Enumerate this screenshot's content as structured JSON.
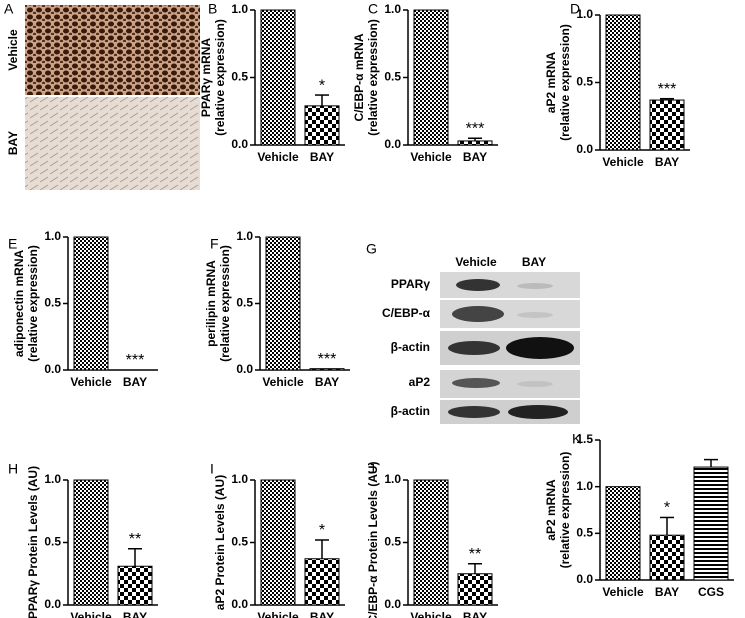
{
  "chart_data": [
    {
      "type": "bar",
      "panel": "B",
      "ylabel": [
        "PPARγ mRNA",
        "(relative expression)"
      ],
      "categories": [
        "Vehicle",
        "BAY"
      ],
      "values": [
        1.0,
        0.29
      ],
      "errors": [
        null,
        0.08
      ],
      "annotations": [
        {
          "index": 1,
          "text": "*"
        }
      ],
      "ylim": [
        0,
        1
      ],
      "yticks": [
        {
          "value": 0,
          "label": "0.0"
        },
        {
          "value": 0.5,
          "label": "0.5"
        },
        {
          "value": 1,
          "label": "1.0"
        }
      ]
    },
    {
      "type": "bar",
      "panel": "C",
      "ylabel": [
        "C/EBP-α mRNA",
        "(relative expression)"
      ],
      "categories": [
        "Vehicle",
        "BAY"
      ],
      "values": [
        1.0,
        0.03
      ],
      "errors": [
        null,
        0.02
      ],
      "annotations": [
        {
          "index": 1,
          "text": "***"
        }
      ],
      "ylim": [
        0,
        1
      ],
      "yticks": [
        {
          "value": 0,
          "label": "0.0"
        },
        {
          "value": 0.5,
          "label": "0.5"
        },
        {
          "value": 1,
          "label": "1.0"
        }
      ]
    },
    {
      "type": "bar",
      "panel": "D",
      "ylabel": [
        "aP2 mRNA",
        "(relative expression)"
      ],
      "categories": [
        "Vehicle",
        "BAY"
      ],
      "values": [
        1.0,
        0.37
      ],
      "errors": [
        null,
        0.01
      ],
      "annotations": [
        {
          "index": 1,
          "text": "***"
        }
      ],
      "ylim": [
        0,
        1
      ],
      "yticks": [
        {
          "value": 0,
          "label": "0.0"
        },
        {
          "value": 0.5,
          "label": "0.5"
        },
        {
          "value": 1,
          "label": "1.0"
        }
      ]
    },
    {
      "type": "bar",
      "panel": "E",
      "ylabel": [
        "adiponectin mRNA",
        "(relative expression)"
      ],
      "categories": [
        "Vehicle",
        "BAY"
      ],
      "values": [
        1.0,
        0.0
      ],
      "errors": [
        null,
        null
      ],
      "annotations": [
        {
          "index": 1,
          "text": "***"
        }
      ],
      "ylim": [
        0,
        1
      ],
      "yticks": [
        {
          "value": 0,
          "label": "0.0"
        },
        {
          "value": 0.5,
          "label": "0.5"
        },
        {
          "value": 1,
          "label": "1.0"
        }
      ]
    },
    {
      "type": "bar",
      "panel": "F",
      "ylabel": [
        "perilipin mRNA",
        "(relative expression)"
      ],
      "categories": [
        "Vehicle",
        "BAY"
      ],
      "values": [
        1.0,
        0.01
      ],
      "errors": [
        null,
        null
      ],
      "annotations": [
        {
          "index": 1,
          "text": "***"
        }
      ],
      "ylim": [
        0,
        1
      ],
      "yticks": [
        {
          "value": 0,
          "label": "0.0"
        },
        {
          "value": 0.5,
          "label": "0.5"
        },
        {
          "value": 1,
          "label": "1.0"
        }
      ]
    },
    {
      "type": "bar",
      "panel": "H",
      "ylabel": [
        "PPARγ Protein Levels (AU)"
      ],
      "categories": [
        "Vehicle",
        "BAY"
      ],
      "values": [
        1.0,
        0.31
      ],
      "errors": [
        null,
        0.14
      ],
      "annotations": [
        {
          "index": 1,
          "text": "**"
        }
      ],
      "ylim": [
        0,
        1
      ],
      "yticks": [
        {
          "value": 0,
          "label": "0.0"
        },
        {
          "value": 0.5,
          "label": "0.5"
        },
        {
          "value": 1,
          "label": "1.0"
        }
      ]
    },
    {
      "type": "bar",
      "panel": "I",
      "ylabel": [
        "aP2 Protein Levels (AU)"
      ],
      "categories": [
        "Vehicle",
        "BAY"
      ],
      "values": [
        1.0,
        0.37
      ],
      "errors": [
        null,
        0.15
      ],
      "annotations": [
        {
          "index": 1,
          "text": "*"
        }
      ],
      "ylim": [
        0,
        1
      ],
      "yticks": [
        {
          "value": 0,
          "label": "0.0"
        },
        {
          "value": 0.5,
          "label": "0.5"
        },
        {
          "value": 1,
          "label": "1.0"
        }
      ]
    },
    {
      "type": "bar",
      "panel": "J",
      "ylabel": [
        "C/EBP-α Protein Levels (AU)"
      ],
      "categories": [
        "Vehicle",
        "BAY"
      ],
      "values": [
        1.0,
        0.25
      ],
      "errors": [
        null,
        0.08
      ],
      "annotations": [
        {
          "index": 1,
          "text": "**"
        }
      ],
      "ylim": [
        0,
        1
      ],
      "yticks": [
        {
          "value": 0,
          "label": "0.0"
        },
        {
          "value": 0.5,
          "label": "0.5"
        },
        {
          "value": 1,
          "label": "1.0"
        }
      ]
    },
    {
      "type": "bar",
      "panel": "K",
      "ylabel": [
        "aP2 mRNA",
        "(relative expression)"
      ],
      "categories": [
        "Vehicle",
        "BAY",
        "CGS"
      ],
      "values": [
        1.0,
        0.48,
        1.21
      ],
      "errors": [
        null,
        0.19,
        0.08
      ],
      "annotations": [
        {
          "index": 1,
          "text": "*"
        }
      ],
      "ylim": [
        0,
        1.5
      ],
      "yticks": [
        {
          "value": 0,
          "label": "0.0"
        },
        {
          "value": 0.5,
          "label": "0.5"
        },
        {
          "value": 1,
          "label": "1.0"
        },
        {
          "value": 1.5,
          "label": "1.5"
        }
      ]
    }
  ],
  "figure": {
    "panel_a": {
      "label": "A",
      "rows": [
        "Vehicle",
        "BAY"
      ]
    },
    "panel_g": {
      "label": "G",
      "columns": [
        "Vehicle",
        "BAY"
      ],
      "rows": [
        "PPARγ",
        "C/EBP-α",
        "β-actin",
        "aP2",
        "β-actin"
      ]
    }
  }
}
